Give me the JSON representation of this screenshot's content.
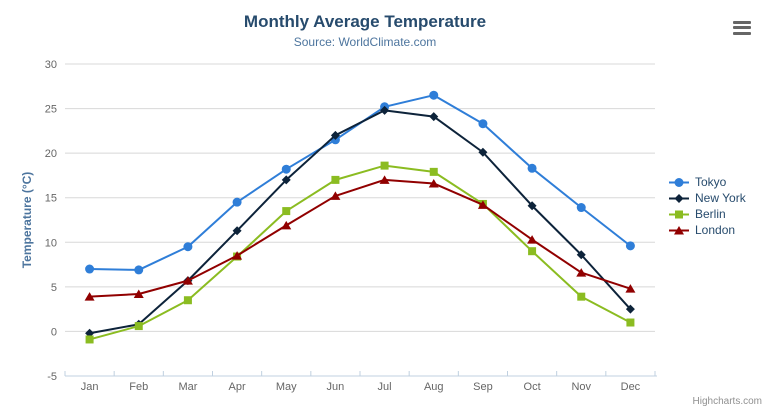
{
  "credits": "Highcharts.com",
  "context_menu": {
    "tooltip": "Chart context menu"
  },
  "colors": {
    "title": "#274b6d",
    "subtitle": "#4d759e",
    "axis_labels": "#666666",
    "axis_line": "#c0d0e0",
    "gridline": "#d8d8d8",
    "legend_text": "#274b6d",
    "credits_text": "#909090"
  },
  "chart_data": {
    "type": "line",
    "title": "Monthly Average Temperature",
    "subtitle": "Source: WorldClimate.com",
    "ylabel": "Temperature (°C)",
    "xlabel": "",
    "ylim": [
      -5,
      30
    ],
    "yticks": [
      -5,
      0,
      5,
      10,
      15,
      20,
      25,
      30
    ],
    "grid": true,
    "legend_position": "right",
    "categories": [
      "Jan",
      "Feb",
      "Mar",
      "Apr",
      "May",
      "Jun",
      "Jul",
      "Aug",
      "Sep",
      "Oct",
      "Nov",
      "Dec"
    ],
    "series": [
      {
        "name": "Tokyo",
        "color": "#2f7ed8",
        "marker": "circle",
        "values": [
          7.0,
          6.9,
          9.5,
          14.5,
          18.2,
          21.5,
          25.2,
          26.5,
          23.3,
          18.3,
          13.9,
          9.6
        ]
      },
      {
        "name": "New York",
        "color": "#0d233a",
        "marker": "diamond",
        "values": [
          -0.2,
          0.8,
          5.7,
          11.3,
          17.0,
          22.0,
          24.8,
          24.1,
          20.1,
          14.1,
          8.6,
          2.5
        ]
      },
      {
        "name": "Berlin",
        "color": "#8bbc21",
        "marker": "square",
        "values": [
          -0.9,
          0.6,
          3.5,
          8.4,
          13.5,
          17.0,
          18.6,
          17.9,
          14.3,
          9.0,
          3.9,
          1.0
        ]
      },
      {
        "name": "London",
        "color": "#910000",
        "marker": "triangle",
        "values": [
          3.9,
          4.2,
          5.7,
          8.5,
          11.9,
          15.2,
          17.0,
          16.6,
          14.2,
          10.3,
          6.6,
          4.8
        ]
      }
    ]
  }
}
